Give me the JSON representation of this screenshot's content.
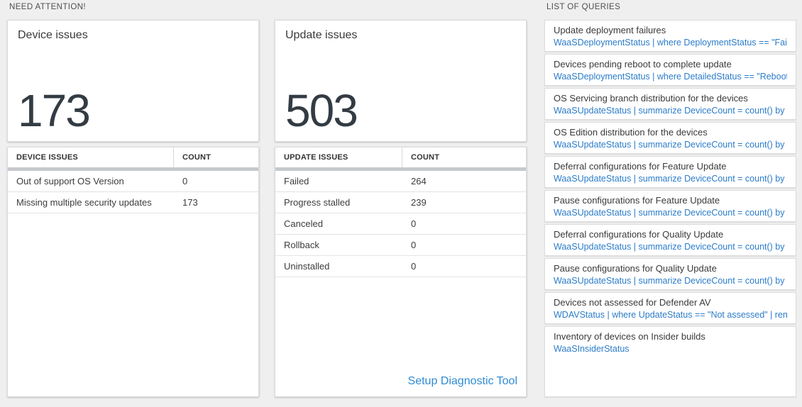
{
  "need_attention": {
    "header": "NEED ATTENTION!",
    "device_tile": {
      "title": "Device issues",
      "value": "173"
    },
    "device_table": {
      "col1": "DEVICE ISSUES",
      "col2": "COUNT",
      "rows": [
        [
          "Out of support OS Version",
          "0"
        ],
        [
          "Missing multiple security updates",
          "173"
        ]
      ]
    },
    "update_tile": {
      "title": "Update issues",
      "value": "503"
    },
    "update_table": {
      "col1": "UPDATE ISSUES",
      "col2": "COUNT",
      "rows": [
        [
          "Failed",
          "264"
        ],
        [
          "Progress stalled",
          "239"
        ],
        [
          "Canceled",
          "0"
        ],
        [
          "Rollback",
          "0"
        ],
        [
          "Uninstalled",
          "0"
        ]
      ]
    },
    "setup_link": "Setup Diagnostic Tool"
  },
  "queries": {
    "header": "LIST OF QUERIES",
    "items": [
      {
        "title": "Update deployment failures",
        "query": "WaaSDeploymentStatus | where DeploymentStatus == \"Failed\" |..."
      },
      {
        "title": "Devices pending reboot to complete update",
        "query": "WaaSDeploymentStatus | where DetailedStatus == \"Reboot pend..."
      },
      {
        "title": "OS Servicing branch distribution for the devices",
        "query": "WaaSUpdateStatus | summarize DeviceCount = count() by OSSer..."
      },
      {
        "title": "OS Edition distribution for the devices",
        "query": "WaaSUpdateStatus | summarize DeviceCount = count() by OSEdit..."
      },
      {
        "title": "Deferral configurations for Feature Update",
        "query": "WaaSUpdateStatus | summarize DeviceCount = count() by Featur..."
      },
      {
        "title": "Pause configurations for Feature Update",
        "query": "WaaSUpdateStatus | summarize DeviceCount = count() by Featur..."
      },
      {
        "title": "Deferral configurations for Quality Update",
        "query": "WaaSUpdateStatus | summarize DeviceCount = count() by Qualit..."
      },
      {
        "title": "Pause configurations for Quality Update",
        "query": "WaaSUpdateStatus | summarize DeviceCount = count() by Qualit..."
      },
      {
        "title": "Devices not assessed for Defender AV",
        "query": "WDAVStatus | where UpdateStatus == \"Not assessed\" | render ta..."
      },
      {
        "title": "Inventory of devices on Insider builds",
        "query": "WaaSInsiderStatus"
      }
    ]
  },
  "colors": {
    "page_bg": "#efefef",
    "link_blue": "#2f8bd3",
    "query_blue": "#2b7cc9",
    "big_number": "#333b43",
    "header_bar_gray": "#c6c9cc"
  }
}
